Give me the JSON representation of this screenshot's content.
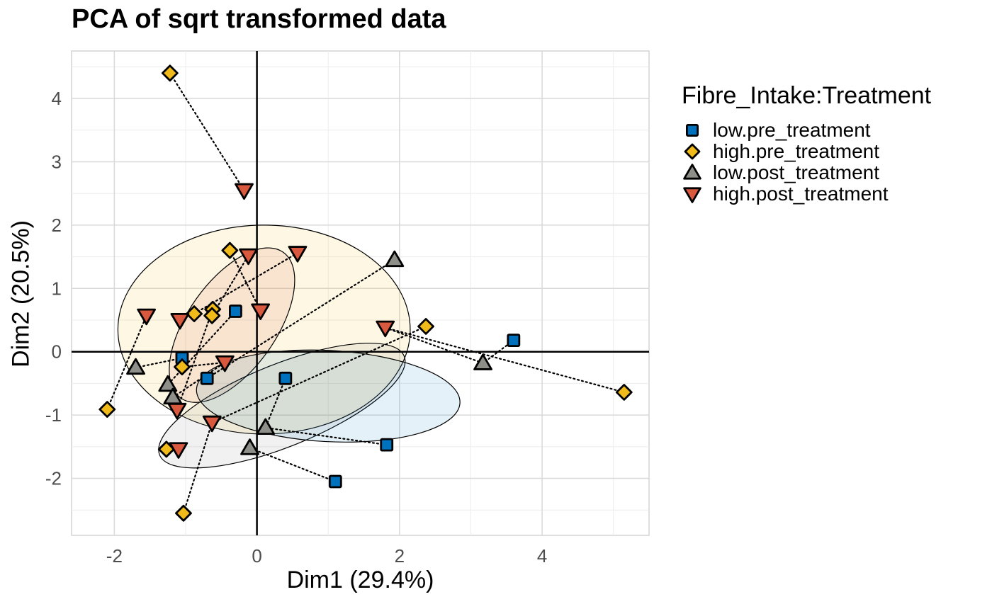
{
  "chart_data": {
    "type": "scatter",
    "title": "PCA of sqrt transformed data",
    "xlabel": "Dim1 (29.4%)",
    "ylabel": "Dim2 (20.5%)",
    "xlim": [
      -2.6,
      5.5
    ],
    "ylim": [
      -2.9,
      4.75
    ],
    "xticks": [
      -2,
      0,
      2,
      4
    ],
    "yticks": [
      -2,
      -1,
      0,
      1,
      2,
      3,
      4
    ],
    "grid": true,
    "legend_title": "Fibre_Intake:Treatment",
    "legend_position": "right",
    "series": [
      {
        "name": "low.pre_treatment",
        "marker": "square",
        "color": "#0072BD",
        "points": [
          [
            -1.05,
            -0.1
          ],
          [
            -0.7,
            -0.42
          ],
          [
            -0.3,
            0.64
          ],
          [
            0.4,
            -0.42
          ],
          [
            1.1,
            -2.05
          ],
          [
            1.82,
            -1.47
          ],
          [
            3.6,
            0.18
          ]
        ]
      },
      {
        "name": "high.pre_treatment",
        "marker": "diamond",
        "color": "#F0BA1A",
        "points": [
          [
            -1.22,
            4.4
          ],
          [
            -0.38,
            1.6
          ],
          [
            -0.88,
            0.6
          ],
          [
            -0.62,
            0.67
          ],
          [
            -0.63,
            0.57
          ],
          [
            -1.05,
            -0.24
          ],
          [
            -2.1,
            -0.91
          ],
          [
            -1.27,
            -1.54
          ],
          [
            -1.03,
            -2.55
          ],
          [
            2.37,
            0.4
          ],
          [
            5.15,
            -0.64
          ]
        ]
      },
      {
        "name": "low.post_treatment",
        "marker": "triangle-up",
        "color": "#8F8F8A",
        "points": [
          [
            -1.7,
            -0.25
          ],
          [
            -1.25,
            -0.52
          ],
          [
            -1.18,
            -0.72
          ],
          [
            -0.1,
            -1.52
          ],
          [
            0.12,
            -1.2
          ],
          [
            1.93,
            1.45
          ],
          [
            3.17,
            -0.18
          ]
        ]
      },
      {
        "name": "high.post_treatment",
        "marker": "triangle-down",
        "color": "#D9593F",
        "points": [
          [
            -0.18,
            2.55
          ],
          [
            -0.12,
            1.52
          ],
          [
            0.57,
            1.56
          ],
          [
            0.05,
            0.65
          ],
          [
            -1.55,
            0.57
          ],
          [
            -1.08,
            0.5
          ],
          [
            -0.45,
            -0.17
          ],
          [
            -1.12,
            -0.92
          ],
          [
            -0.63,
            -1.12
          ],
          [
            -1.1,
            -1.54
          ],
          [
            1.8,
            0.38
          ]
        ]
      }
    ],
    "connections": [
      [
        [
          -1.22,
          4.4
        ],
        [
          -0.18,
          2.55
        ]
      ],
      [
        [
          -0.38,
          1.6
        ],
        [
          0.05,
          0.65
        ]
      ],
      [
        [
          -0.88,
          0.6
        ],
        [
          0.57,
          1.56
        ]
      ],
      [
        [
          -0.62,
          0.67
        ],
        [
          -1.12,
          -0.92
        ]
      ],
      [
        [
          -0.63,
          0.57
        ],
        [
          -0.12,
          1.52
        ]
      ],
      [
        [
          -1.05,
          -0.24
        ],
        [
          -0.45,
          -0.17
        ]
      ],
      [
        [
          -2.1,
          -0.91
        ],
        [
          -1.55,
          0.57
        ]
      ],
      [
        [
          -1.27,
          -1.54
        ],
        [
          -1.1,
          -1.54
        ]
      ],
      [
        [
          -1.03,
          -2.55
        ],
        [
          -0.63,
          -1.12
        ]
      ],
      [
        [
          2.37,
          0.4
        ],
        [
          -0.63,
          -1.12
        ]
      ],
      [
        [
          5.15,
          -0.64
        ],
        [
          1.8,
          0.38
        ]
      ],
      [
        [
          -1.05,
          -0.1
        ],
        [
          -1.7,
          -0.25
        ]
      ],
      [
        [
          -0.3,
          0.64
        ],
        [
          -1.25,
          -0.52
        ]
      ],
      [
        [
          0.4,
          -0.42
        ],
        [
          0.12,
          -1.2
        ]
      ],
      [
        [
          1.1,
          -2.05
        ],
        [
          -0.1,
          -1.52
        ]
      ],
      [
        [
          1.82,
          -1.47
        ],
        [
          0.12,
          -1.2
        ]
      ],
      [
        [
          3.6,
          0.18
        ],
        [
          3.17,
          -0.18
        ]
      ],
      [
        [
          -0.7,
          -0.42
        ],
        [
          1.93,
          1.45
        ]
      ],
      [
        [
          3.17,
          -0.18
        ],
        [
          1.8,
          0.38
        ]
      ],
      [
        [
          -1.18,
          -0.72
        ],
        [
          -0.45,
          -0.17
        ]
      ]
    ],
    "ellipses": [
      {
        "series": "high.pre_treatment",
        "center": [
          0.1,
          0.35
        ],
        "semi_axes": [
          2.05,
          1.65
        ],
        "angle_deg": 0,
        "fill": "#F0BA1A",
        "opacity": 0.12
      },
      {
        "series": "high.post_treatment",
        "center": [
          -0.35,
          0.42
        ],
        "semi_axes": [
          1.25,
          0.7
        ],
        "angle_deg": 55,
        "fill": "#D9593F",
        "opacity": 0.12
      },
      {
        "series": "low.post_treatment",
        "center": [
          0.35,
          -0.85
        ],
        "semi_axes": [
          1.85,
          0.65
        ],
        "angle_deg": 22,
        "fill": "#8F8F8A",
        "opacity": 0.12
      },
      {
        "series": "low.pre_treatment",
        "center": [
          1.0,
          -0.7
        ],
        "semi_axes": [
          1.85,
          0.72
        ],
        "angle_deg": -3,
        "fill": "#0072BD",
        "opacity": 0.1
      }
    ]
  }
}
